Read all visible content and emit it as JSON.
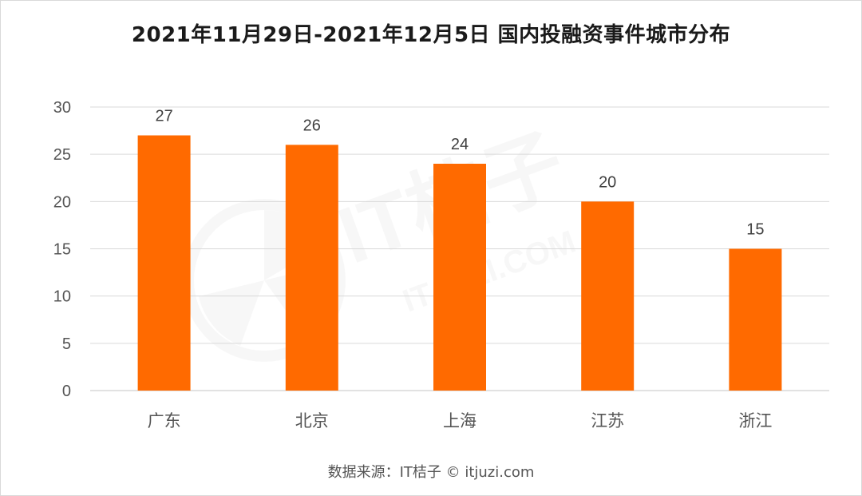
{
  "title": "2021年11月29日-2021年12月5日 国内投融资事件城市分布",
  "source": "数据来源：IT桔子 © itjuzi.com",
  "watermark": {
    "brand": "IT桔子",
    "domain": "ITJUZI.COM"
  },
  "colors": {
    "bar": "#ff6a00",
    "grid": "#d9d9d9",
    "axis_text": "#555555",
    "label_text": "#404040"
  },
  "chart_data": {
    "type": "bar",
    "title": "2021年11月29日-2021年12月5日 国内投融资事件城市分布",
    "categories": [
      "广东",
      "北京",
      "上海",
      "江苏",
      "浙江"
    ],
    "values": [
      27,
      26,
      24,
      20,
      15
    ],
    "data_labels": [
      "27",
      "26",
      "24",
      "20",
      "15"
    ],
    "ylim": [
      0,
      30
    ],
    "yticks": [
      "0",
      "5",
      "10",
      "15",
      "20",
      "25",
      "30"
    ],
    "xlabel": "",
    "ylabel": "",
    "grid": true,
    "legend": "none"
  }
}
